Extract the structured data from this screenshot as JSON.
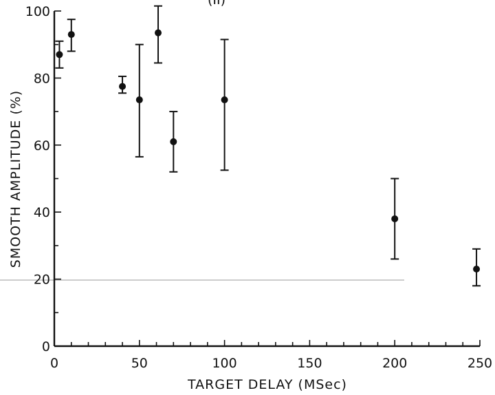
{
  "chart_data": {
    "type": "scatter",
    "title": "(II)",
    "xlabel": "TARGET DELAY (MSec)",
    "ylabel": "SMOOTH AMPLITUDE (%)",
    "xlim": [
      0,
      250
    ],
    "ylim": [
      0,
      100
    ],
    "x_ticks": [
      0,
      50,
      100,
      150,
      200,
      250
    ],
    "y_ticks": [
      0,
      20,
      40,
      60,
      80,
      100
    ],
    "x_tick_labels": [
      "0",
      "50",
      "100",
      "150",
      "200",
      "250"
    ],
    "y_tick_labels": [
      "0",
      "20",
      "40",
      "60",
      "80",
      "100"
    ],
    "grid": false,
    "legend": "none",
    "points": [
      {
        "x": 3,
        "y": 87,
        "err_low": 83,
        "err_high": 91
      },
      {
        "x": 10,
        "y": 93,
        "err_low": 88,
        "err_high": 97.5
      },
      {
        "x": 40,
        "y": 77.5,
        "err_low": 75.5,
        "err_high": 80.5
      },
      {
        "x": 50,
        "y": 73.5,
        "err_low": 56.5,
        "err_high": 90
      },
      {
        "x": 61,
        "y": 93.5,
        "err_low": 84.5,
        "err_high": 101.5
      },
      {
        "x": 70,
        "y": 61,
        "err_low": 52,
        "err_high": 70
      },
      {
        "x": 100,
        "y": 73.5,
        "err_low": 52.5,
        "err_high": 91.5
      },
      {
        "x": 200,
        "y": 38,
        "err_low": 26,
        "err_high": 50
      },
      {
        "x": 248,
        "y": 23,
        "err_low": 18,
        "err_high": 29
      }
    ]
  }
}
